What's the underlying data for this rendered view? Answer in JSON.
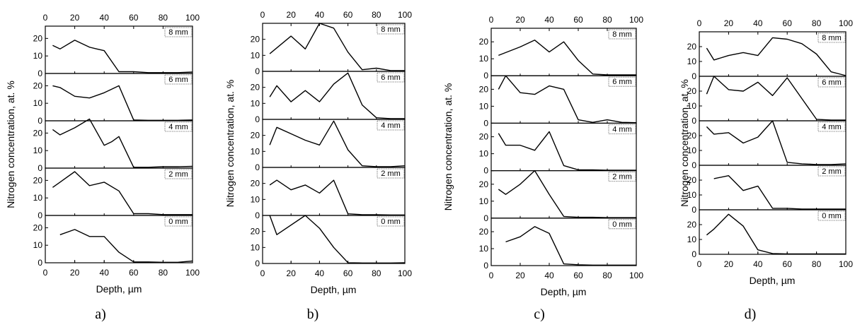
{
  "chart_data": [
    {
      "type": "line",
      "caption": "a)",
      "xlabel": "Depth, µm",
      "ylabel": "Nitrogen concentration, at. %",
      "xlim": [
        0,
        100
      ],
      "xticks": [
        0,
        20,
        40,
        60,
        80,
        100
      ],
      "ylim": [
        0,
        27
      ],
      "yticks": [
        0,
        10,
        20
      ],
      "panels": [
        {
          "label": "8 mm",
          "x": [
            5,
            10,
            20,
            30,
            35,
            40,
            50,
            60,
            70,
            80,
            90,
            100
          ],
          "y": [
            16,
            14,
            19,
            15,
            14,
            13,
            1,
            1,
            0.5,
            0.5,
            0.5,
            0.8
          ]
        },
        {
          "label": "6 mm",
          "x": [
            5,
            10,
            20,
            30,
            40,
            50,
            60,
            70,
            80,
            90,
            100
          ],
          "y": [
            20,
            19,
            14,
            13,
            16,
            20,
            0.5,
            0.3,
            0.3,
            0.3,
            0.5
          ]
        },
        {
          "label": "4 mm",
          "x": [
            5,
            10,
            20,
            30,
            40,
            45,
            50,
            60,
            70,
            80,
            90,
            100
          ],
          "y": [
            22,
            19,
            23,
            28,
            13,
            15,
            18,
            0.5,
            0.5,
            0.8,
            0.8,
            1
          ]
        },
        {
          "label": "2 mm",
          "x": [
            5,
            10,
            20,
            30,
            40,
            50,
            60,
            70,
            80,
            90,
            100
          ],
          "y": [
            16,
            19,
            25,
            17,
            19,
            14,
            1,
            1,
            0.5,
            0.5,
            0.5
          ]
        },
        {
          "label": "0 mm",
          "x": [
            10,
            20,
            30,
            40,
            50,
            60,
            70,
            80,
            90,
            100
          ],
          "y": [
            16,
            19,
            15,
            15,
            6,
            0.5,
            0.5,
            0.3,
            0.3,
            1
          ]
        }
      ]
    },
    {
      "type": "line",
      "caption": "b)",
      "xlabel": "Depth, µm",
      "ylabel": "Nitrogen concentration, at. %",
      "xlim": [
        0,
        100
      ],
      "xticks": [
        0,
        20,
        40,
        60,
        80,
        100
      ],
      "ylim": [
        0,
        30
      ],
      "yticks": [
        0,
        10,
        20
      ],
      "panels": [
        {
          "label": "8 mm",
          "x": [
            5,
            20,
            30,
            40,
            50,
            60,
            70,
            80,
            90,
            100
          ],
          "y": [
            11,
            22,
            14,
            30,
            27,
            12,
            1,
            2,
            0.5,
            0.5
          ]
        },
        {
          "label": "6 mm",
          "x": [
            5,
            10,
            20,
            30,
            40,
            50,
            60,
            70,
            80,
            90,
            100
          ],
          "y": [
            14,
            21,
            11,
            18,
            11,
            22,
            29,
            9,
            1,
            0.5,
            0.5
          ]
        },
        {
          "label": "4 mm",
          "x": [
            5,
            10,
            20,
            30,
            40,
            50,
            60,
            70,
            80,
            90,
            100
          ],
          "y": [
            14,
            25,
            21,
            17,
            14,
            29,
            11,
            1,
            0.5,
            0.5,
            1
          ]
        },
        {
          "label": "2 mm",
          "x": [
            5,
            10,
            20,
            30,
            40,
            50,
            60,
            70,
            80,
            90,
            100
          ],
          "y": [
            19,
            22,
            16,
            19,
            14,
            22,
            1,
            0.5,
            0.5,
            0.3,
            0.3
          ]
        },
        {
          "label": "0 mm",
          "x": [
            5,
            10,
            30,
            40,
            50,
            60,
            70,
            80,
            90,
            100
          ],
          "y": [
            30,
            18,
            30,
            22,
            10,
            0.5,
            0.3,
            0.3,
            0.3,
            0.5
          ]
        }
      ]
    },
    {
      "type": "line",
      "caption": "c)",
      "xlabel": "Depth, µm",
      "ylabel": "Nitrogen concentration, at. %",
      "xlim": [
        0,
        100
      ],
      "xticks": [
        0,
        20,
        40,
        60,
        80,
        100
      ],
      "ylim": [
        0,
        28
      ],
      "yticks": [
        0,
        10,
        20
      ],
      "panels": [
        {
          "label": "8 mm",
          "x": [
            5,
            20,
            30,
            40,
            50,
            60,
            70,
            80,
            90,
            100
          ],
          "y": [
            12,
            17,
            21,
            14,
            20,
            9,
            1,
            0.5,
            0.5,
            0.5
          ]
        },
        {
          "label": "6 mm",
          "x": [
            5,
            10,
            20,
            30,
            40,
            50,
            60,
            70,
            80,
            90,
            100
          ],
          "y": [
            20,
            28,
            18,
            17,
            22,
            20,
            2,
            0.5,
            2,
            0.5,
            0.3
          ]
        },
        {
          "label": "4 mm",
          "x": [
            5,
            10,
            20,
            30,
            40,
            50,
            60,
            70,
            80,
            90,
            100
          ],
          "y": [
            22,
            15,
            15,
            12,
            23,
            3,
            0.5,
            0.5,
            0.3,
            0.3,
            0.3
          ]
        },
        {
          "label": "2 mm",
          "x": [
            5,
            10,
            20,
            30,
            40,
            50,
            60,
            70,
            80,
            90,
            100
          ],
          "y": [
            17,
            14,
            20,
            28,
            14,
            1,
            0.5,
            0.5,
            0.3,
            0.3,
            0.3
          ]
        },
        {
          "label": "0 mm",
          "x": [
            10,
            20,
            30,
            40,
            50,
            60,
            70,
            80,
            90,
            100
          ],
          "y": [
            14,
            17,
            23,
            19,
            1,
            0.5,
            0.3,
            0.3,
            0.3,
            0.3
          ]
        }
      ]
    },
    {
      "type": "line",
      "caption": "d)",
      "xlabel": "Depth, µm",
      "ylabel": "Nitrogen concentration, at. %",
      "xlim": [
        0,
        100
      ],
      "xticks": [
        0,
        20,
        40,
        60,
        80,
        100
      ],
      "ylim": [
        0,
        30
      ],
      "yticks": [
        0,
        10,
        20
      ],
      "panels": [
        {
          "label": "8 mm",
          "x": [
            5,
            10,
            20,
            30,
            40,
            50,
            60,
            70,
            80,
            90,
            100
          ],
          "y": [
            19,
            11,
            14,
            16,
            14,
            26,
            25,
            22,
            15,
            3,
            0.5
          ]
        },
        {
          "label": "6 mm",
          "x": [
            5,
            10,
            20,
            30,
            40,
            50,
            60,
            70,
            80,
            90,
            100
          ],
          "y": [
            18,
            30,
            21,
            20,
            26,
            17,
            29,
            15,
            1,
            0.5,
            0.5
          ]
        },
        {
          "label": "4 mm",
          "x": [
            5,
            10,
            20,
            30,
            40,
            50,
            60,
            70,
            80,
            90,
            100
          ],
          "y": [
            26,
            21,
            22,
            15,
            19,
            30,
            2,
            1,
            0.5,
            0.5,
            1
          ]
        },
        {
          "label": "2 mm",
          "x": [
            10,
            20,
            30,
            40,
            50,
            60,
            70,
            80,
            90,
            100
          ],
          "y": [
            21,
            23,
            13,
            16,
            1,
            1,
            0.5,
            0.5,
            0.5,
            0.5
          ]
        },
        {
          "label": "0 mm",
          "x": [
            5,
            10,
            20,
            30,
            40,
            50,
            60,
            70,
            80,
            90,
            100
          ],
          "y": [
            13,
            17,
            27,
            19,
            3,
            0.5,
            0.3,
            0.3,
            0.3,
            0.3,
            0.3
          ]
        }
      ]
    }
  ]
}
